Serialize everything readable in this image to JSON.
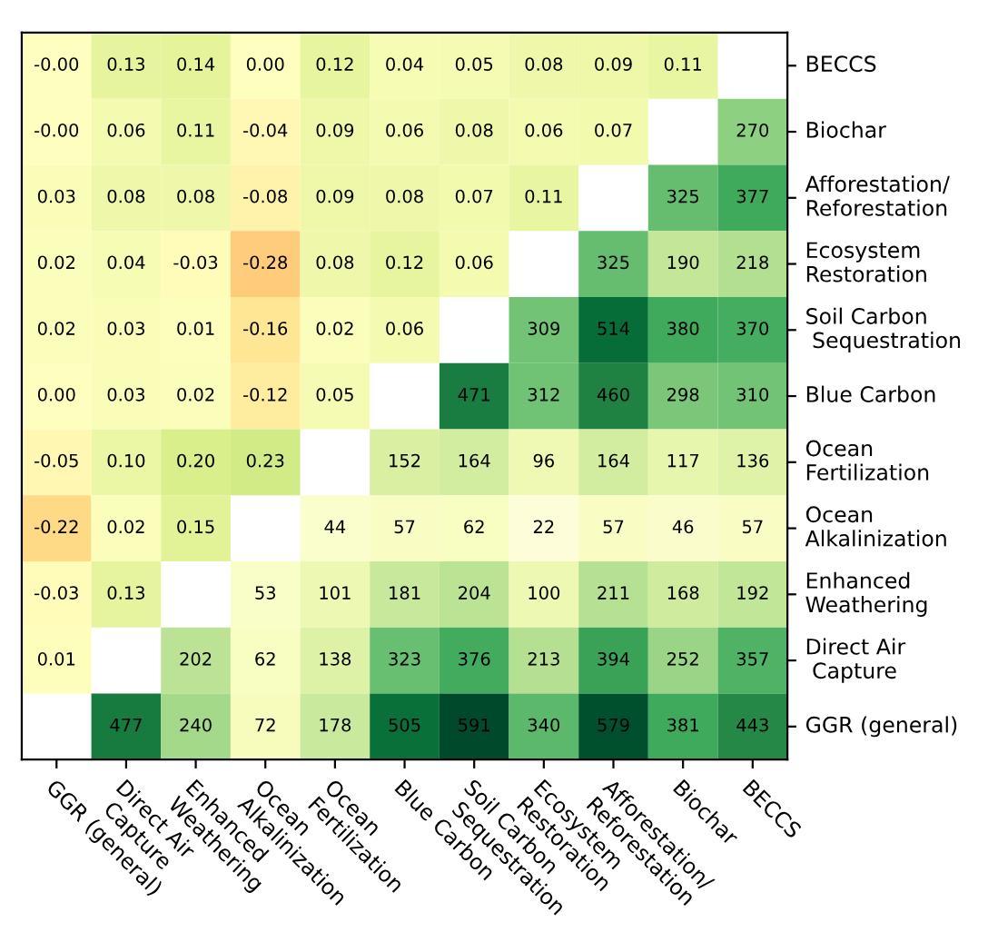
{
  "chart_data": {
    "type": "heatmap",
    "categories": [
      "GGR (general)",
      "Direct Air\n Capture",
      "Enhanced\nWeathering",
      "Ocean\nAlkalinization",
      "Ocean\nFertilization",
      "Blue Carbon",
      "Soil Carbon\n Sequestration",
      "Ecosystem\nRestoration",
      "Afforestation/\nReforestation",
      "Biochar",
      "BECCS"
    ],
    "y_categories": [
      "BECCS",
      "Biochar",
      "Afforestation/\nReforestation",
      "Ecosystem\nRestoration",
      "Soil Carbon\n Sequestration",
      "Blue Carbon",
      "Ocean\nFertilization",
      "Ocean\nAlkalinization",
      "Enhanced\nWeathering",
      "Direct Air\n Capture",
      "GGR (general)"
    ],
    "cells": [
      [
        0.0,
        0.13,
        0.14,
        0.0,
        0.12,
        0.04,
        0.05,
        0.08,
        0.09,
        0.11,
        null
      ],
      [
        0.0,
        0.06,
        0.11,
        -0.04,
        0.09,
        0.06,
        0.08,
        0.06,
        0.07,
        null,
        270
      ],
      [
        0.03,
        0.08,
        0.08,
        -0.08,
        0.09,
        0.08,
        0.07,
        0.11,
        null,
        325,
        377
      ],
      [
        0.02,
        0.04,
        -0.03,
        -0.28,
        0.08,
        0.12,
        0.06,
        null,
        325,
        190,
        218
      ],
      [
        0.02,
        0.03,
        0.01,
        -0.16,
        0.02,
        0.06,
        null,
        309,
        514,
        380,
        370
      ],
      [
        0.0,
        0.03,
        0.02,
        -0.12,
        0.05,
        null,
        471,
        312,
        460,
        298,
        310
      ],
      [
        -0.05,
        0.1,
        0.2,
        0.23,
        null,
        152,
        164,
        96,
        164,
        117,
        136
      ],
      [
        -0.22,
        0.02,
        0.15,
        null,
        44,
        57,
        62,
        22,
        57,
        46,
        57
      ],
      [
        -0.03,
        0.13,
        null,
        53,
        101,
        181,
        204,
        100,
        211,
        168,
        192
      ],
      [
        0.01,
        null,
        202,
        62,
        138,
        323,
        376,
        213,
        394,
        252,
        357
      ],
      [
        null,
        477,
        240,
        72,
        178,
        505,
        591,
        340,
        579,
        381,
        443
      ]
    ],
    "cell_labels": [
      [
        "-0.00",
        "0.13",
        "0.14",
        "0.00",
        "0.12",
        "0.04",
        "0.05",
        "0.08",
        "0.09",
        "0.11",
        null
      ],
      [
        "-0.00",
        "0.06",
        "0.11",
        "-0.04",
        "0.09",
        "0.06",
        "0.08",
        "0.06",
        "0.07",
        null,
        "270"
      ],
      [
        "0.03",
        "0.08",
        "0.08",
        "-0.08",
        "0.09",
        "0.08",
        "0.07",
        "0.11",
        null,
        "325",
        "377"
      ],
      [
        "0.02",
        "0.04",
        "-0.03",
        "-0.28",
        "0.08",
        "0.12",
        "0.06",
        null,
        "325",
        "190",
        "218"
      ],
      [
        "0.02",
        "0.03",
        "0.01",
        "-0.16",
        "0.02",
        "0.06",
        null,
        "309",
        "514",
        "380",
        "370"
      ],
      [
        "0.00",
        "0.03",
        "0.02",
        "-0.12",
        "0.05",
        null,
        "471",
        "312",
        "460",
        "298",
        "310"
      ],
      [
        "-0.05",
        "0.10",
        "0.20",
        "0.23",
        null,
        "152",
        "164",
        "96",
        "164",
        "117",
        "136"
      ],
      [
        "-0.22",
        "0.02",
        "0.15",
        null,
        "44",
        "57",
        "62",
        "22",
        "57",
        "46",
        "57"
      ],
      [
        "-0.03",
        "0.13",
        null,
        "53",
        "101",
        "181",
        "204",
        "100",
        "211",
        "168",
        "192"
      ],
      [
        "0.01",
        null,
        "202",
        "62",
        "138",
        "323",
        "376",
        "213",
        "394",
        "252",
        "357"
      ],
      [
        null,
        "477",
        "240",
        "72",
        "178",
        "505",
        "591",
        "340",
        "579",
        "381",
        "443"
      ]
    ],
    "data_labels": true
  }
}
